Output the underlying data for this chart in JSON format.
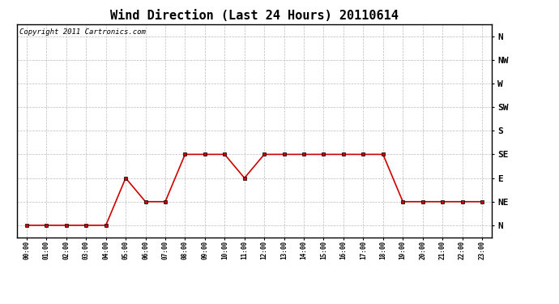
{
  "title": "Wind Direction (Last 24 Hours) 20110614",
  "copyright_text": "Copyright 2011 Cartronics.com",
  "x_labels": [
    "00:00",
    "01:00",
    "02:00",
    "03:00",
    "04:00",
    "05:00",
    "06:00",
    "07:00",
    "08:00",
    "09:00",
    "10:00",
    "11:00",
    "12:00",
    "13:00",
    "14:00",
    "15:00",
    "16:00",
    "17:00",
    "18:00",
    "19:00",
    "20:00",
    "21:00",
    "22:00",
    "23:00"
  ],
  "right_y_labels": [
    "N",
    "NW",
    "W",
    "SW",
    "S",
    "SE",
    "E",
    "NE",
    "N"
  ],
  "wind_data": [
    0,
    0,
    0,
    0,
    0,
    2,
    1,
    1,
    3,
    3,
    3,
    2,
    3,
    3,
    3,
    3,
    3,
    3,
    3,
    1,
    1,
    1,
    1,
    1
  ],
  "line_color": "#cc0000",
  "marker_color": "#cc0000",
  "grid_color": "#bbbbbb",
  "bg_color": "#ffffff",
  "title_fontsize": 11,
  "copyright_fontsize": 6.5,
  "label_fontsize": 8
}
